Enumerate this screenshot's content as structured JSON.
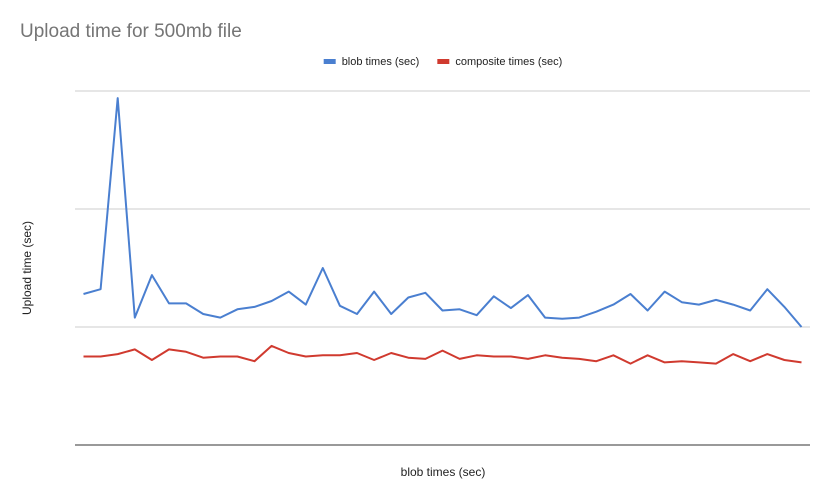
{
  "chart_data": {
    "type": "line",
    "title": "Upload time for 500mb file",
    "x_label": "blob times (sec)",
    "y_label": "Upload time (sec)",
    "categories": [
      null,
      null,
      null,
      null,
      null,
      null,
      null,
      null,
      null,
      null,
      null,
      null,
      null,
      null,
      null,
      null,
      null,
      null,
      null,
      null,
      null,
      null,
      null,
      null,
      null,
      null,
      null,
      null,
      null,
      null,
      null,
      null,
      null,
      null,
      null,
      null,
      null,
      null,
      null,
      null,
      null,
      null,
      null
    ],
    "series": [
      {
        "name": "blob times (sec)",
        "color": "#4a7fd0",
        "values": [
          1.28,
          1.32,
          2.94,
          1.08,
          1.44,
          1.2,
          1.2,
          1.11,
          1.08,
          1.15,
          1.17,
          1.22,
          1.3,
          1.19,
          1.5,
          1.18,
          1.11,
          1.3,
          1.11,
          1.25,
          1.29,
          1.14,
          1.15,
          1.1,
          1.26,
          1.16,
          1.27,
          1.08,
          1.07,
          1.08,
          1.13,
          1.19,
          1.28,
          1.14,
          1.3,
          1.21,
          1.19,
          1.23,
          1.19,
          1.14,
          1.32,
          1.17,
          1.0
        ]
      },
      {
        "name": "composite times (sec)",
        "color": "#d03a2f",
        "values": [
          0.75,
          0.75,
          0.77,
          0.81,
          0.72,
          0.81,
          0.79,
          0.74,
          0.75,
          0.75,
          0.71,
          0.84,
          0.78,
          0.75,
          0.76,
          0.76,
          0.78,
          0.72,
          0.78,
          0.74,
          0.73,
          0.8,
          0.73,
          0.76,
          0.75,
          0.75,
          0.73,
          0.76,
          0.74,
          0.73,
          0.71,
          0.76,
          0.69,
          0.76,
          0.7,
          0.71,
          0.7,
          0.69,
          0.77,
          0.71,
          0.77,
          0.72,
          0.7
        ]
      }
    ],
    "ylim": [
      0,
      3
    ],
    "yticks": [
      0,
      1,
      2,
      3
    ],
    "grid": true,
    "show_tick_labels": false,
    "legend": "top"
  }
}
